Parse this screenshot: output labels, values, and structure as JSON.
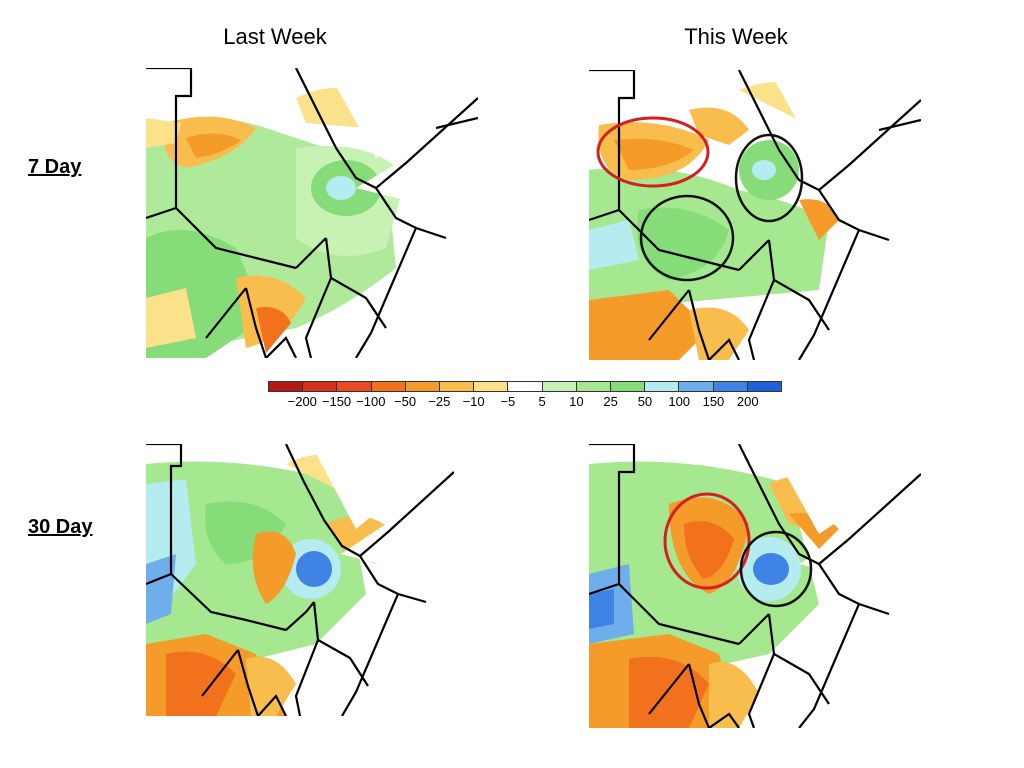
{
  "headers": {
    "last_week": "Last Week",
    "this_week": "This Week"
  },
  "rows": {
    "seven_day": "7 Day",
    "thirty_day": "30 Day"
  },
  "legend": {
    "colors": [
      "#b01a14",
      "#d2321c",
      "#ea4b22",
      "#f2711c",
      "#f59b2a",
      "#f8bd4c",
      "#fbe28a",
      "#ffffff",
      "#c8f2b4",
      "#a6e890",
      "#86dc78",
      "#b4ecf0",
      "#6eaeea",
      "#3f84e4",
      "#2060d8"
    ],
    "labels": [
      "−200",
      "−150",
      "−100",
      "−50",
      "−25",
      "−10",
      "−5",
      "5",
      "10",
      "25",
      "50",
      "100",
      "150",
      "200"
    ]
  },
  "panels": {
    "seven_last": {
      "description_color": "#86dc78"
    },
    "seven_this": {
      "circles": [
        "red",
        "black",
        "black"
      ]
    },
    "thirty_last": {},
    "thirty_this": {
      "circles": [
        "red",
        "black"
      ]
    }
  },
  "colors": {
    "dry": "#f59b2a",
    "wet": "#86dc78",
    "very_wet": "#3f84e4",
    "red_circle": "#d42020",
    "black_circle": "#111111"
  }
}
